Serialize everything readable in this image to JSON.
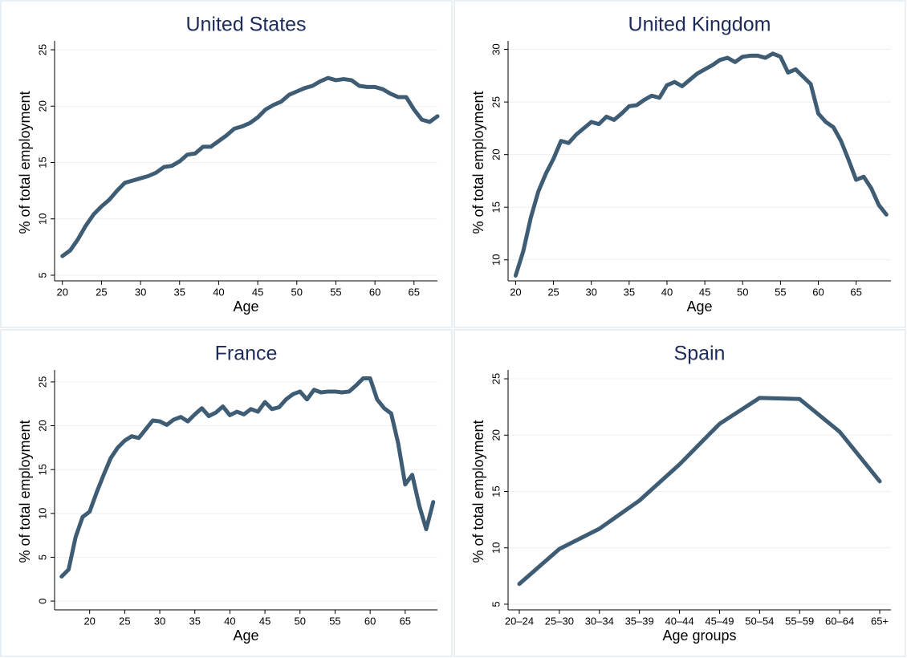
{
  "chart_data": [
    {
      "type": "line",
      "title": "United States",
      "x_label": "Age",
      "y_label": "% of total employment",
      "color": "#3e5d75",
      "grid": true,
      "x": [
        20,
        21,
        22,
        23,
        24,
        25,
        26,
        27,
        28,
        29,
        30,
        31,
        32,
        33,
        34,
        35,
        36,
        37,
        38,
        39,
        40,
        41,
        42,
        43,
        44,
        45,
        46,
        47,
        48,
        49,
        50,
        51,
        52,
        53,
        54,
        55,
        56,
        57,
        58,
        59,
        60,
        61,
        62,
        63,
        64,
        65,
        66,
        67,
        68
      ],
      "values": [
        6.7,
        7.2,
        8.2,
        9.4,
        10.4,
        11.1,
        11.7,
        12.5,
        13.2,
        13.4,
        13.6,
        13.8,
        14.1,
        14.6,
        14.7,
        15.1,
        15.7,
        15.8,
        16.4,
        16.4,
        16.9,
        17.4,
        18.0,
        18.2,
        18.5,
        19.0,
        19.7,
        20.1,
        20.4,
        21.0,
        21.3,
        21.6,
        21.8,
        22.2,
        22.5,
        22.3,
        22.4,
        22.3,
        21.8,
        21.7,
        21.7,
        21.5,
        21.1,
        20.8,
        20.8,
        19.7,
        18.8,
        18.6,
        19.1
      ],
      "xlim": [
        19,
        68
      ],
      "ylim": [
        4.5,
        25.5
      ],
      "xticks": [
        20,
        25,
        30,
        35,
        40,
        45,
        50,
        55,
        60,
        65
      ],
      "yticks": [
        5,
        10,
        15,
        20,
        25
      ]
    },
    {
      "type": "line",
      "title": "United Kingdom",
      "x_label": "Age",
      "y_label": "% of total employment",
      "color": "#3e5d75",
      "grid": true,
      "x": [
        20,
        21,
        22,
        23,
        24,
        25,
        26,
        27,
        28,
        29,
        30,
        31,
        32,
        33,
        34,
        35,
        36,
        37,
        38,
        39,
        40,
        41,
        42,
        43,
        44,
        45,
        46,
        47,
        48,
        49,
        50,
        51,
        52,
        53,
        54,
        55,
        56,
        57,
        58,
        59,
        60,
        61,
        62,
        63,
        64,
        65,
        66,
        67,
        68,
        69
      ],
      "values": [
        8.5,
        10.8,
        14.0,
        16.5,
        18.2,
        19.6,
        21.3,
        21.1,
        21.9,
        22.5,
        23.1,
        22.9,
        23.6,
        23.3,
        23.9,
        24.6,
        24.7,
        25.2,
        25.6,
        25.4,
        26.6,
        26.9,
        26.5,
        27.1,
        27.7,
        28.1,
        28.5,
        29.0,
        29.2,
        28.8,
        29.3,
        29.4,
        29.4,
        29.2,
        29.6,
        29.3,
        27.8,
        28.1,
        27.4,
        26.7,
        23.9,
        23.1,
        22.6,
        21.3,
        19.5,
        17.6,
        17.9,
        16.8,
        15.2,
        14.3
      ],
      "xlim": [
        19,
        69.6
      ],
      "ylim": [
        8,
        30.5
      ],
      "xticks": [
        20,
        25,
        30,
        35,
        40,
        45,
        50,
        55,
        60,
        65
      ],
      "yticks": [
        10,
        15,
        20,
        25,
        30
      ]
    },
    {
      "type": "line",
      "title": "France",
      "x_label": "Age",
      "y_label": "% of total employment",
      "color": "#3e5d75",
      "grid": true,
      "x": [
        16,
        17,
        18,
        19,
        20,
        21,
        22,
        23,
        24,
        25,
        26,
        27,
        28,
        29,
        30,
        31,
        32,
        33,
        34,
        35,
        36,
        37,
        38,
        39,
        40,
        41,
        42,
        43,
        44,
        45,
        46,
        47,
        48,
        49,
        50,
        51,
        52,
        53,
        54,
        55,
        56,
        57,
        58,
        59,
        60,
        61,
        62,
        63,
        64,
        65,
        66,
        67,
        68,
        69
      ],
      "values": [
        2.8,
        3.6,
        7.3,
        9.6,
        10.2,
        12.4,
        14.4,
        16.3,
        17.5,
        18.3,
        18.8,
        18.6,
        19.6,
        20.6,
        20.5,
        20.1,
        20.7,
        21.0,
        20.5,
        21.3,
        22.0,
        21.1,
        21.5,
        22.2,
        21.2,
        21.6,
        21.3,
        21.9,
        21.6,
        22.7,
        21.9,
        22.1,
        23.0,
        23.6,
        23.9,
        23.0,
        24.1,
        23.8,
        23.9,
        23.9,
        23.8,
        23.9,
        24.6,
        25.4,
        25.4,
        23.0,
        22.0,
        21.4,
        18.0,
        13.3,
        14.4,
        10.9,
        8.2,
        11.3
      ],
      "xlim": [
        15,
        69.6
      ],
      "ylim": [
        -1,
        26
      ],
      "xticks": [
        20,
        25,
        30,
        35,
        40,
        45,
        50,
        55,
        60,
        65
      ],
      "yticks": [
        0,
        5,
        10,
        15,
        20,
        25
      ]
    },
    {
      "type": "line",
      "title": "Spain",
      "x_label": "Age groups",
      "y_label": "% of total employment",
      "color": "#3e5d75",
      "grid": true,
      "categories": [
        "20–24",
        "25–30",
        "30–34",
        "35–39",
        "40–44",
        "45–49",
        "50–54",
        "55–59",
        "60–64",
        "65+"
      ],
      "values": [
        6.8,
        9.9,
        11.7,
        14.2,
        17.4,
        21.0,
        23.3,
        23.2,
        20.3,
        15.9
      ],
      "ylim": [
        4.5,
        25.5
      ],
      "yticks": [
        5,
        10,
        15,
        20,
        25
      ]
    }
  ]
}
